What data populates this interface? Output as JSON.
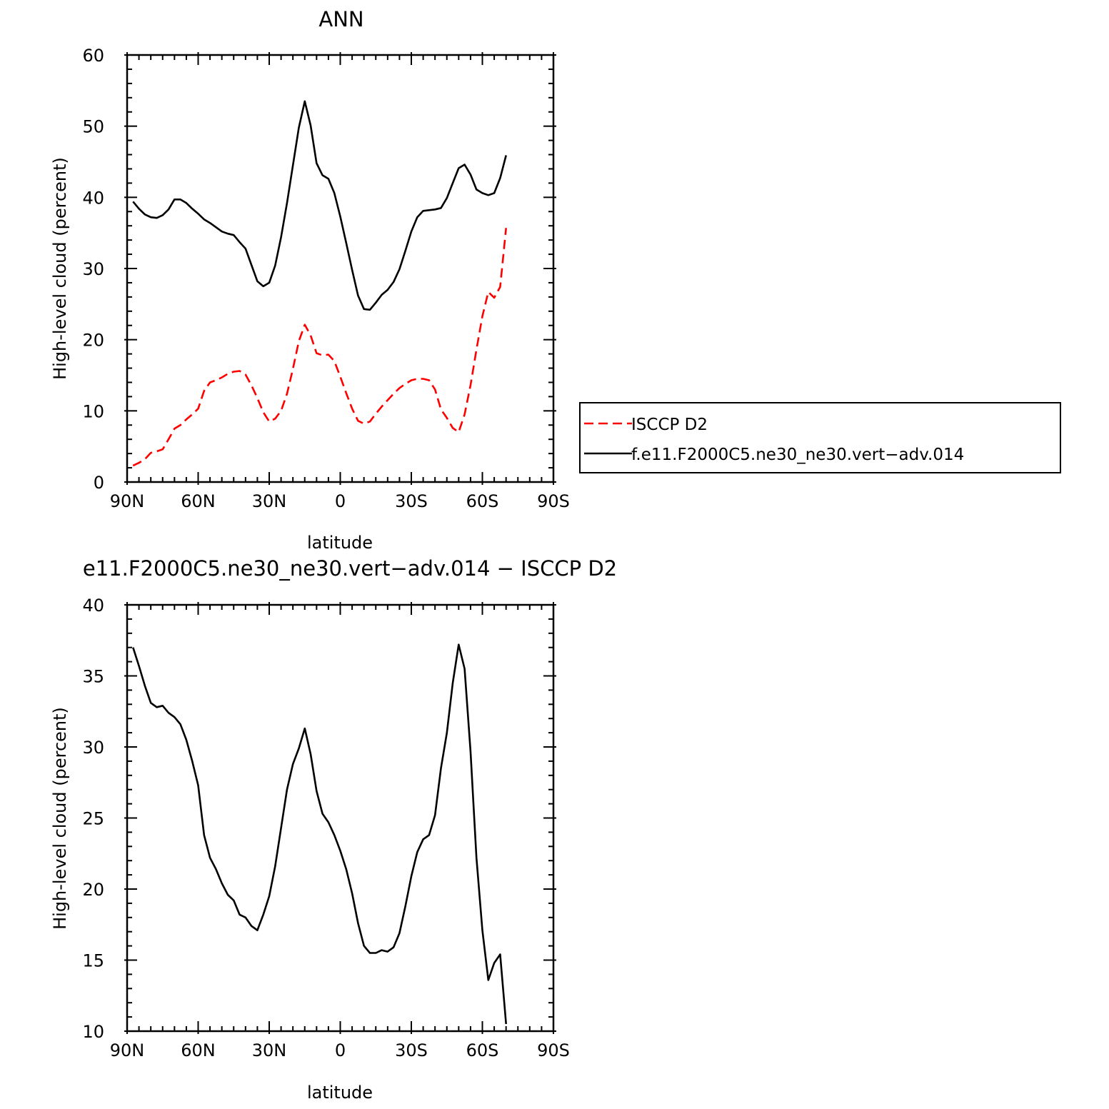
{
  "chart_data": [
    {
      "type": "line",
      "title": "ANN",
      "xlabel": "latitude",
      "ylabel": "High-level cloud (percent)",
      "xlim": [
        90,
        -90
      ],
      "ylim": [
        0,
        60
      ],
      "xticks": [
        90,
        60,
        30,
        0,
        -30,
        -60,
        -90
      ],
      "xtick_labels": [
        "90N",
        "60N",
        "30N",
        "0",
        "30S",
        "60S",
        "90S"
      ],
      "yticks": [
        0,
        10,
        20,
        30,
        40,
        50,
        60
      ],
      "ytick_labels": [
        "0",
        "10",
        "20",
        "30",
        "40",
        "50",
        "60"
      ],
      "legend_position": "right",
      "series": [
        {
          "name": "ISCCP D2",
          "color": "#ff0000",
          "dash": true,
          "points": [
            [
              87.5,
              2.3
            ],
            [
              85,
              2.7
            ],
            [
              82.5,
              3.2
            ],
            [
              80,
              4.1
            ],
            [
              77.5,
              4.3
            ],
            [
              75,
              4.6
            ],
            [
              72.5,
              6
            ],
            [
              70,
              7.5
            ],
            [
              67.5,
              8
            ],
            [
              65,
              8.8
            ],
            [
              62.5,
              9.5
            ],
            [
              60,
              10.3
            ],
            [
              57.5,
              12.8
            ],
            [
              55,
              14
            ],
            [
              52.5,
              14.3
            ],
            [
              50,
              14.7
            ],
            [
              47.5,
              15.2
            ],
            [
              45,
              15.5
            ],
            [
              42.5,
              15.6
            ],
            [
              40,
              15.1
            ],
            [
              37.5,
              13.6
            ],
            [
              35,
              11.8
            ],
            [
              32.5,
              9.8
            ],
            [
              30,
              8.5
            ],
            [
              27.5,
              8.9
            ],
            [
              25,
              10
            ],
            [
              22.5,
              12.4
            ],
            [
              20,
              15.9
            ],
            [
              17.5,
              19.8
            ],
            [
              15,
              22.1
            ],
            [
              12.5,
              20.6
            ],
            [
              10,
              18.1
            ],
            [
              7.5,
              17.8
            ],
            [
              5,
              17.9
            ],
            [
              2.5,
              17
            ],
            [
              0,
              14.8
            ],
            [
              -2.5,
              12.5
            ],
            [
              -5,
              10.3
            ],
            [
              -7.5,
              8.6
            ],
            [
              -10,
              8.2
            ],
            [
              -12.5,
              8.5
            ],
            [
              -15,
              9.6
            ],
            [
              -17.5,
              10.6
            ],
            [
              -20,
              11.5
            ],
            [
              -22.5,
              12.4
            ],
            [
              -25,
              13.2
            ],
            [
              -27.5,
              13.8
            ],
            [
              -30,
              14.3
            ],
            [
              -32.5,
              14.5
            ],
            [
              -35,
              14.5
            ],
            [
              -37.5,
              14.3
            ],
            [
              -40,
              13
            ],
            [
              -42.5,
              10.2
            ],
            [
              -45,
              9
            ],
            [
              -47.5,
              7.6
            ],
            [
              -50,
              7
            ],
            [
              -52.5,
              9.5
            ],
            [
              -55,
              13.6
            ],
            [
              -57.5,
              18.6
            ],
            [
              -60,
              23.3
            ],
            [
              -62.5,
              26.7
            ],
            [
              -65,
              25.9
            ],
            [
              -67.5,
              27.4
            ],
            [
              -70,
              35.7
            ]
          ]
        },
        {
          "name": "f.e11.F2000C5.ne30_ne30.vert−adv.014",
          "color": "#000000",
          "dash": false,
          "points": [
            [
              87.5,
              39.4
            ],
            [
              85,
              38.4
            ],
            [
              82.5,
              37.6
            ],
            [
              80,
              37.2
            ],
            [
              77.5,
              37.1
            ],
            [
              75,
              37.5
            ],
            [
              72.5,
              38.3
            ],
            [
              70,
              39.7
            ],
            [
              67.5,
              39.7
            ],
            [
              65,
              39.2
            ],
            [
              62.5,
              38.4
            ],
            [
              60,
              37.7
            ],
            [
              57.5,
              36.9
            ],
            [
              55,
              36.4
            ],
            [
              52.5,
              35.8
            ],
            [
              50,
              35.2
            ],
            [
              47.5,
              34.9
            ],
            [
              45,
              34.7
            ],
            [
              42.5,
              33.7
            ],
            [
              40,
              32.8
            ],
            [
              37.5,
              30.5
            ],
            [
              35,
              28.2
            ],
            [
              32.5,
              27.5
            ],
            [
              30,
              28
            ],
            [
              27.5,
              30.4
            ],
            [
              25,
              34.4
            ],
            [
              22.5,
              39.2
            ],
            [
              20,
              44.5
            ],
            [
              17.5,
              49.8
            ],
            [
              15,
              53.5
            ],
            [
              12.5,
              50.1
            ],
            [
              10,
              44.8
            ],
            [
              7.5,
              43.1
            ],
            [
              5,
              42.6
            ],
            [
              2.5,
              40.6
            ],
            [
              0,
              37.3
            ],
            [
              -2.5,
              33.6
            ],
            [
              -5,
              29.8
            ],
            [
              -7.5,
              26.2
            ],
            [
              -10,
              24.3
            ],
            [
              -12.5,
              24.2
            ],
            [
              -15,
              25.2
            ],
            [
              -17.5,
              26.3
            ],
            [
              -20,
              27
            ],
            [
              -22.5,
              28.1
            ],
            [
              -25,
              29.9
            ],
            [
              -27.5,
              32.5
            ],
            [
              -30,
              35.2
            ],
            [
              -32.5,
              37.2
            ],
            [
              -35,
              38.1
            ],
            [
              -37.5,
              38.2
            ],
            [
              -40,
              38.3
            ],
            [
              -42.5,
              38.5
            ],
            [
              -45,
              39.9
            ],
            [
              -47.5,
              42
            ],
            [
              -50,
              44.1
            ],
            [
              -52.5,
              44.6
            ],
            [
              -55,
              43.2
            ],
            [
              -57.5,
              41.1
            ],
            [
              -60,
              40.6
            ],
            [
              -62.5,
              40.3
            ],
            [
              -65,
              40.6
            ],
            [
              -67.5,
              42.7
            ],
            [
              -70,
              45.9
            ]
          ]
        }
      ]
    },
    {
      "type": "line",
      "title": "e11.F2000C5.ne30_ne30.vert−adv.014 − ISCCP D2",
      "xlabel": "latitude",
      "ylabel": "High-level cloud (percent)",
      "xlim": [
        90,
        -90
      ],
      "ylim": [
        10,
        40
      ],
      "xticks": [
        90,
        60,
        30,
        0,
        -30,
        -60,
        -90
      ],
      "xtick_labels": [
        "90N",
        "60N",
        "30N",
        "0",
        "30S",
        "60S",
        "90S"
      ],
      "yticks": [
        10,
        15,
        20,
        25,
        30,
        35,
        40
      ],
      "ytick_labels": [
        "10",
        "15",
        "20",
        "25",
        "30",
        "35",
        "40"
      ],
      "series": [
        {
          "color": "#000000",
          "dash": false,
          "points": [
            [
              87.5,
              37
            ],
            [
              85,
              35.7
            ],
            [
              82.5,
              34.3
            ],
            [
              80,
              33.1
            ],
            [
              77.5,
              32.8
            ],
            [
              75,
              32.9
            ],
            [
              72.5,
              32.4
            ],
            [
              70,
              32.1
            ],
            [
              67.5,
              31.6
            ],
            [
              65,
              30.5
            ],
            [
              62.5,
              29
            ],
            [
              60,
              27.3
            ],
            [
              57.5,
              23.8
            ],
            [
              55,
              22.2
            ],
            [
              52.5,
              21.4
            ],
            [
              50,
              20.4
            ],
            [
              47.5,
              19.6
            ],
            [
              45,
              19.2
            ],
            [
              42.5,
              18.2
            ],
            [
              40,
              18
            ],
            [
              37.5,
              17.4
            ],
            [
              35,
              17.1
            ],
            [
              32.5,
              18.2
            ],
            [
              30,
              19.5
            ],
            [
              27.5,
              21.6
            ],
            [
              25,
              24.3
            ],
            [
              22.5,
              27
            ],
            [
              20,
              28.8
            ],
            [
              17.5,
              29.9
            ],
            [
              15,
              31.3
            ],
            [
              12.5,
              29.5
            ],
            [
              10,
              26.9
            ],
            [
              7.5,
              25.3
            ],
            [
              5,
              24.7
            ],
            [
              2.5,
              23.8
            ],
            [
              0,
              22.7
            ],
            [
              -2.5,
              21.4
            ],
            [
              -5,
              19.7
            ],
            [
              -7.5,
              17.6
            ],
            [
              -10,
              16
            ],
            [
              -12.5,
              15.5
            ],
            [
              -15,
              15.5
            ],
            [
              -17.5,
              15.7
            ],
            [
              -20,
              15.6
            ],
            [
              -22.5,
              15.9
            ],
            [
              -25,
              16.9
            ],
            [
              -27.5,
              18.8
            ],
            [
              -30,
              20.9
            ],
            [
              -32.5,
              22.6
            ],
            [
              -35,
              23.5
            ],
            [
              -37.5,
              23.8
            ],
            [
              -40,
              25.2
            ],
            [
              -42.5,
              28.5
            ],
            [
              -45,
              31
            ],
            [
              -47.5,
              34.5
            ],
            [
              -50,
              37.2
            ],
            [
              -52.5,
              35.5
            ],
            [
              -55,
              29.7
            ],
            [
              -57.5,
              22.2
            ],
            [
              -60,
              17.1
            ],
            [
              -62.5,
              13.6
            ],
            [
              -65,
              14.8
            ],
            [
              -67.5,
              15.4
            ],
            [
              -70,
              10.5
            ]
          ]
        }
      ]
    }
  ]
}
